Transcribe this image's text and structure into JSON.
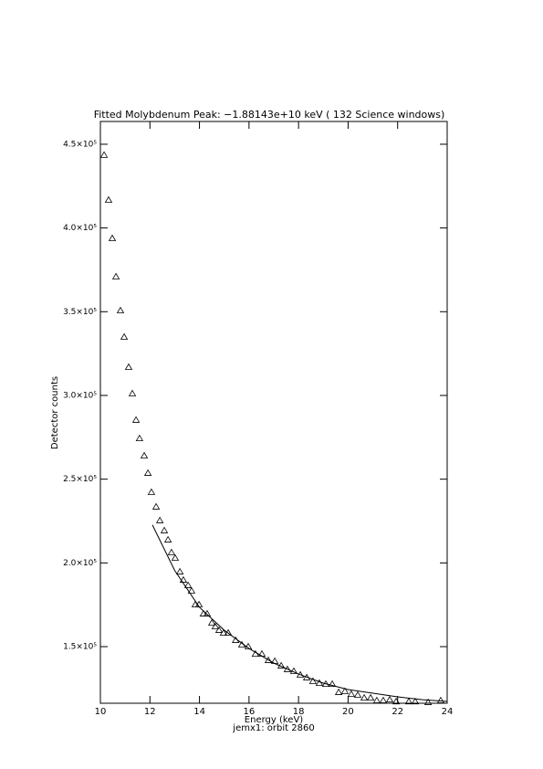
{
  "chart_data": {
    "type": "scatter",
    "title": "Fitted Molybdenum Peak:  −1.88143e+10 keV (         132 Science windows)",
    "x_label": "Energy (keV)",
    "y_label": "Detector counts",
    "subtitle": "jemx1: orbit 2860",
    "xlim": [
      10,
      24
    ],
    "xticks": [
      10,
      12,
      14,
      16,
      18,
      20,
      22,
      24
    ],
    "ylim": [
      116200,
      463600
    ],
    "yticks": [
      {
        "value": 150000,
        "label": "1.5×10⁵"
      },
      {
        "value": 200000,
        "label": "2.0×10⁵"
      },
      {
        "value": 250000,
        "label": "2.5×10⁵"
      },
      {
        "value": 300000,
        "label": "3.0×10⁵"
      },
      {
        "value": 350000,
        "label": "3.5×10⁵"
      },
      {
        "value": 400000,
        "label": "4.0×10⁵"
      },
      {
        "value": 450000,
        "label": "4.5×10⁵"
      }
    ],
    "series": [
      {
        "marker": "triangle",
        "color": "#000000",
        "x": [
          10.15,
          10.33,
          10.48,
          10.63,
          10.81,
          10.96,
          11.14,
          11.29,
          11.44,
          11.58,
          11.77,
          11.92,
          12.06,
          12.25,
          12.4,
          12.58,
          12.73,
          12.87,
          13.02,
          13.21,
          13.35,
          13.54,
          13.68,
          13.83,
          13.98,
          14.16,
          14.31,
          14.5,
          14.64,
          14.79,
          14.97,
          15.16,
          15.46,
          15.71,
          15.97,
          16.26,
          16.52,
          16.78,
          17.04,
          17.3,
          17.55,
          17.81,
          18.07,
          18.33,
          18.58,
          18.84,
          19.1,
          19.36,
          19.62,
          19.87,
          20.13,
          20.39,
          20.65,
          20.91,
          21.16,
          21.42,
          21.68,
          21.94,
          22.45,
          22.71,
          23.23,
          23.74
        ],
        "values": [
          443500,
          416700,
          393800,
          370900,
          350700,
          334900,
          316900,
          301100,
          285300,
          274300,
          264000,
          253600,
          242200,
          233500,
          225300,
          219300,
          213800,
          206200,
          202900,
          194700,
          189800,
          186600,
          183300,
          175100,
          175100,
          169600,
          169600,
          164200,
          162000,
          159800,
          158200,
          158200,
          153800,
          151100,
          150000,
          145600,
          145600,
          141800,
          141300,
          138600,
          136400,
          135300,
          133100,
          131500,
          129300,
          128200,
          127600,
          127600,
          122700,
          123300,
          121600,
          121100,
          119400,
          119400,
          117800,
          117800,
          118300,
          117200,
          117200,
          117200,
          116700,
          117800
        ]
      },
      {
        "marker": "line",
        "color": "#000000",
        "x": [
          12.1,
          13,
          14,
          15,
          16,
          17,
          18,
          19,
          20,
          21,
          22,
          23,
          24
        ],
        "values": [
          222700,
          195500,
          173500,
          159800,
          148900,
          140200,
          133600,
          128200,
          124400,
          122200,
          120000,
          118300,
          117300
        ]
      }
    ]
  }
}
